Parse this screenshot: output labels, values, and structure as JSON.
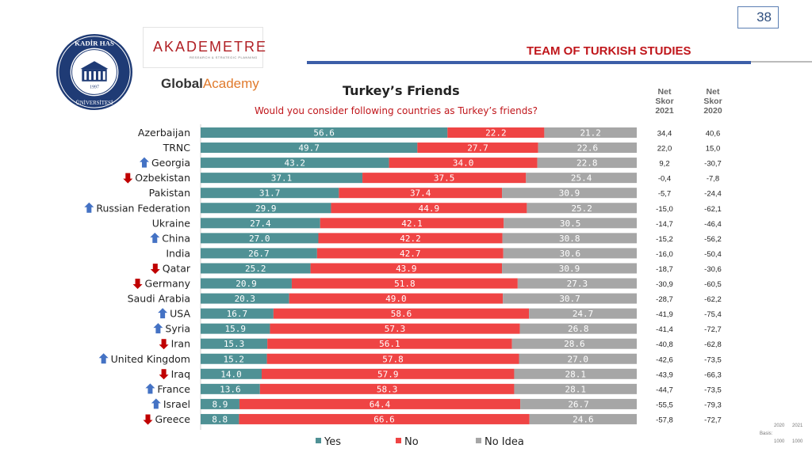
{
  "header": {
    "page_number": "38",
    "team_title": "TEAM OF TURKISH STUDIES",
    "logos": {
      "kadir_has": "KADİR HAS ÜNİVERSİTESİ 1997",
      "akademetre": "AKADEMETRE",
      "akademetre_sub": "RESEARCH & STRATEGIC PLANNING",
      "global_academy_1": "Global",
      "global_academy_2": "Academy"
    }
  },
  "columns": {
    "net_2021": [
      "Net",
      "Skor",
      "2021"
    ],
    "net_2020": [
      "Net",
      "Skor",
      "2020"
    ]
  },
  "basis": {
    "label": "Basis:",
    "years": [
      "2020",
      "2021"
    ],
    "counts": [
      "1000",
      "1000"
    ]
  },
  "colors": {
    "yes": "#4f9195",
    "no": "#ef4444",
    "no_idea": "#a6a6a6",
    "arrow_up": "#4472c4",
    "arrow_down": "#c00000"
  },
  "chart_data": {
    "type": "bar",
    "orientation": "horizontal",
    "stacked": true,
    "title": "Turkey’s Friends",
    "subtitle": "Would you consider following countries as Turkey’s friends?",
    "xlim": [
      0,
      100
    ],
    "legend_position": "bottom",
    "categories": [
      "Azerbaijan",
      "TRNC",
      "Georgia",
      "Ozbekistan",
      "Pakistan",
      "Russian Federation",
      "Ukraine",
      "China",
      "India",
      "Qatar",
      "Germany",
      "Saudi Arabia",
      "USA",
      "Syria",
      "Iran",
      "United Kingdom",
      "Iraq",
      "France",
      "Israel",
      "Greece"
    ],
    "arrows": [
      "",
      "",
      "up",
      "down",
      "",
      "up",
      "",
      "up",
      "",
      "down",
      "down",
      "",
      "up",
      "up",
      "down",
      "up",
      "down",
      "up",
      "up",
      "down"
    ],
    "series": [
      {
        "name": "Yes",
        "values": [
          "56.6",
          "49.7",
          "43.2",
          "37.1",
          "31.7",
          "29.9",
          "27.4",
          "27.0",
          "26.7",
          "25.2",
          "20.9",
          "20.3",
          "16.7",
          "15.9",
          "15.3",
          "15.2",
          "14.0",
          "13.6",
          "8.9",
          "8.8"
        ]
      },
      {
        "name": "No",
        "values": [
          "22.2",
          "27.7",
          "34.0",
          "37.5",
          "37.4",
          "44.9",
          "42.1",
          "42.2",
          "42.7",
          "43.9",
          "51.8",
          "49.0",
          "58.6",
          "57.3",
          "56.1",
          "57.8",
          "57.9",
          "58.3",
          "64.4",
          "66.6"
        ]
      },
      {
        "name": "No Idea",
        "values": [
          "21.2",
          "22.6",
          "22.8",
          "25.4",
          "30.9",
          "25.2",
          "30.5",
          "30.8",
          "30.6",
          "30.9",
          "27.3",
          "30.7",
          "24.7",
          "26.8",
          "28.6",
          "27.0",
          "28.1",
          "28.1",
          "26.7",
          "24.6"
        ]
      }
    ],
    "net_score_2021": [
      "34,4",
      "22,0",
      "9,2",
      "-0,4",
      "-5,7",
      "-15,0",
      "-14,7",
      "-15,2",
      "-16,0",
      "-18,7",
      "-30,9",
      "-28,7",
      "-41,9",
      "-41,4",
      "-40,8",
      "-42,6",
      "-43,9",
      "-44,7",
      "-55,5",
      "-57,8"
    ],
    "net_score_2020": [
      "40,6",
      "15,0",
      "-30,7",
      "-7,8",
      "-24,4",
      "-62,1",
      "-46,4",
      "-56,2",
      "-50,4",
      "-30,6",
      "-60,5",
      "-62,2",
      "-75,4",
      "-72,7",
      "-62,8",
      "-73,5",
      "-66,3",
      "-73,5",
      "-79,3",
      "-72,7"
    ]
  }
}
